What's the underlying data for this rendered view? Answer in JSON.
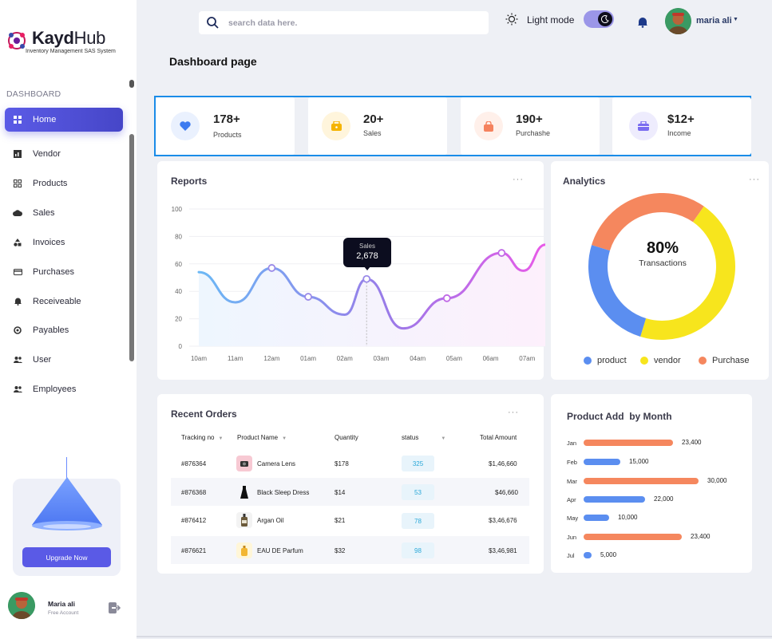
{
  "brand": {
    "name_bold": "Kayd",
    "name_light": "Hub",
    "subtitle": "Inventory Management SAS System"
  },
  "sidebar": {
    "section": "DASHBOARD",
    "items": [
      {
        "label": "Home",
        "icon": "grid-icon",
        "active": true
      },
      {
        "label": "Vendor",
        "icon": "chart-icon"
      },
      {
        "label": "Products",
        "icon": "apps-icon"
      },
      {
        "label": "Sales",
        "icon": "cloud-icon"
      },
      {
        "label": "Invoices",
        "icon": "shapes-icon"
      },
      {
        "label": "Purchases",
        "icon": "card-icon"
      },
      {
        "label": "Receiveable",
        "icon": "bell-icon"
      },
      {
        "label": "Payables",
        "icon": "payables-icon"
      },
      {
        "label": "User",
        "icon": "users-icon"
      },
      {
        "label": "Employees",
        "icon": "team-icon"
      }
    ],
    "upgrade_label": "Upgrade Now",
    "profile": {
      "name": "Maria ali",
      "role": "Free Account"
    }
  },
  "header": {
    "search_placeholder": "search data here.",
    "mode_label": "Light mode",
    "user_name": "maria ali"
  },
  "page_title": "Dashboard page",
  "stats": [
    {
      "value": "178+",
      "label": "Products",
      "color": "#3d7bf0",
      "bg": "#eaf1fe"
    },
    {
      "value": "20+",
      "label": "Sales",
      "color": "#f5b400",
      "bg": "#fff5dc"
    },
    {
      "value": "190+",
      "label": "Purchashe",
      "color": "#f5825e",
      "bg": "#fff0ea"
    },
    {
      "value": "$12+",
      "label": "Income",
      "color": "#7a6cf0",
      "bg": "#eeecfd"
    }
  ],
  "reports": {
    "title": "Reports",
    "tooltip_label": "Sales",
    "tooltip_value": "2,678",
    "chart_data": {
      "type": "line",
      "x": [
        "10am",
        "11am",
        "12am",
        "01am",
        "02am",
        "03am",
        "04am",
        "05am",
        "06am",
        "07am"
      ],
      "y_ticks": [
        0,
        20,
        40,
        60,
        80,
        100
      ],
      "ylim": [
        0,
        100
      ],
      "points": [
        {
          "x": 0.0,
          "y": 54
        },
        {
          "x": 1.0,
          "y": 32
        },
        {
          "x": 2.0,
          "y": 57
        },
        {
          "x": 3.0,
          "y": 36
        },
        {
          "x": 4.0,
          "y": 23
        },
        {
          "x": 4.6,
          "y": 49
        },
        {
          "x": 5.6,
          "y": 13
        },
        {
          "x": 6.8,
          "y": 35
        },
        {
          "x": 8.3,
          "y": 68
        },
        {
          "x": 8.9,
          "y": 55
        },
        {
          "x": 9.5,
          "y": 74
        }
      ],
      "highlight_x": 4.6
    }
  },
  "analytics": {
    "title": "Analytics",
    "center_value": "80%",
    "center_label": "Transactions",
    "chart_data": {
      "type": "pie",
      "slices": [
        {
          "name": "product",
          "value": 25,
          "color": "#5b8ef0"
        },
        {
          "name": "vendor",
          "value": 45,
          "color": "#f7e51d"
        },
        {
          "name": "Purchase",
          "value": 30,
          "color": "#f5875e"
        }
      ]
    }
  },
  "orders": {
    "title": "Recent Orders",
    "columns": [
      "Tracking no",
      "Product Name",
      "Quantity",
      "status",
      "Total Amount"
    ],
    "rows": [
      {
        "tracking": "#876364",
        "product": "Camera Lens",
        "qty": "$178",
        "status": "325",
        "total": "$1,46,660",
        "thumb": "#f7c9d3",
        "thumb_icon": "camera-icon"
      },
      {
        "tracking": "#876368",
        "product": "Black Sleep Dress",
        "qty": "$14",
        "status": "53",
        "total": "$46,660",
        "thumb": "#f5f6fa",
        "thumb_icon": "dress-icon"
      },
      {
        "tracking": "#876412",
        "product": "Argan Oil",
        "qty": "$21",
        "status": "78",
        "total": "$3,46,676",
        "thumb": "#f3f3f3",
        "thumb_icon": "bottle-icon"
      },
      {
        "tracking": "#876621",
        "product": "EAU DE Parfum",
        "qty": "$32",
        "status": "98",
        "total": "$3,46,981",
        "thumb": "#fff6d8",
        "thumb_icon": "perfume-icon"
      }
    ]
  },
  "product_add": {
    "title": "Product Add  by Month",
    "chart_data": {
      "type": "bar",
      "orientation": "horizontal",
      "categories": [
        "Jan",
        "Feb",
        "Mar",
        "Apr",
        "May",
        "Jun",
        "Jul"
      ],
      "values": [
        23400,
        15000,
        30000,
        22000,
        10000,
        23400,
        5000
      ],
      "labels": [
        "23,400",
        "15,000",
        "30,000",
        "22,000",
        "10,000",
        "23,400",
        "5,000"
      ],
      "colors": [
        "#f5875e",
        "#5b8ef0",
        "#f5875e",
        "#5b8ef0",
        "#5b8ef0",
        "#f5875e",
        "#5b8ef0"
      ],
      "bar_lengths": [
        0.77,
        0.32,
        0.99,
        0.53,
        0.22,
        0.85,
        0.07
      ]
    }
  }
}
